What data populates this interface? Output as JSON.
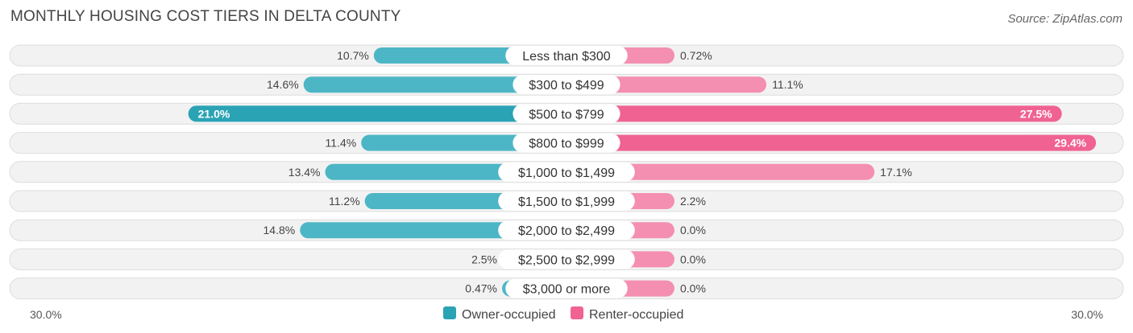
{
  "chart_data": {
    "type": "bar",
    "orientation": "horizontal-diverging",
    "title": "MONTHLY HOUSING COST TIERS IN DELTA COUNTY",
    "source": "Source: ZipAtlas.com",
    "categories": [
      "Less than $300",
      "$300 to $499",
      "$500 to $799",
      "$800 to $999",
      "$1,000 to $1,499",
      "$1,500 to $1,999",
      "$2,000 to $2,499",
      "$2,500 to $2,999",
      "$3,000 or more"
    ],
    "series": [
      {
        "name": "Owner-occupied",
        "color": "#4db6c6",
        "color_max": "#2aa3b5",
        "values": [
          10.7,
          14.6,
          21.0,
          11.4,
          13.4,
          11.2,
          14.8,
          2.5,
          0.47
        ],
        "labels": [
          "10.7%",
          "14.6%",
          "21.0%",
          "11.4%",
          "13.4%",
          "11.2%",
          "14.8%",
          "2.5%",
          "0.47%"
        ]
      },
      {
        "name": "Renter-occupied",
        "color": "#f48fb1",
        "color_max": "#f06292",
        "values": [
          0.72,
          11.1,
          27.5,
          29.4,
          17.1,
          2.2,
          0.0,
          0.0,
          0.0
        ],
        "labels": [
          "0.72%",
          "11.1%",
          "27.5%",
          "29.4%",
          "17.1%",
          "2.2%",
          "0.0%",
          "0.0%",
          "0.0%"
        ]
      }
    ],
    "xlim": [
      -30,
      30
    ],
    "axis_labels": {
      "left": "30.0%",
      "right": "30.0%"
    },
    "legend": {
      "position": "bottom-center",
      "items": [
        "Owner-occupied",
        "Renter-occupied"
      ]
    }
  }
}
